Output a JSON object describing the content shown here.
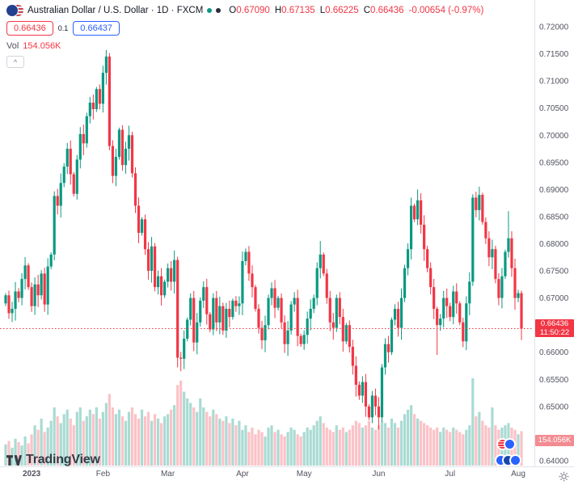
{
  "header": {
    "title": "Australian Dollar / U.S. Dollar · 1D · FXCM",
    "ohlc": {
      "o_label": "O",
      "o": "0.67090",
      "h_label": "H",
      "h": "0.67135",
      "l_label": "L",
      "l": "0.66225",
      "c_label": "C",
      "c": "0.66436",
      "change": "-0.00654 (-0.97%)"
    },
    "sell_price": "0.66436",
    "spread": "0.1",
    "buy_price": "0.66437",
    "vol_label": "Vol",
    "vol_value": "154.056K",
    "collapse_glyph": "^"
  },
  "badges": {
    "last_price": "0.66436",
    "countdown": "11:50:22",
    "volume": "154.056K"
  },
  "footer": {
    "logo_text": "TradingView"
  },
  "colors": {
    "up": "#089981",
    "down": "#f23645",
    "vol_up": "rgba(8,153,129,0.35)",
    "vol_down": "rgba(242,54,69,0.30)",
    "accent_blue": "#2962ff",
    "badge_price_bg": "#f23645",
    "badge_vol_bg": "#f28c92",
    "axis_text": "#50535e",
    "axis_line": "#e0e3eb"
  },
  "chart_data": {
    "type": "candlestick",
    "timeframe": "1D",
    "exchange": "FXCM",
    "price_axis": {
      "min": 0.64,
      "max": 0.72,
      "step": 0.005
    },
    "price_labels": [
      "0.72000",
      "0.71500",
      "0.71000",
      "0.70500",
      "0.70000",
      "0.69500",
      "0.69000",
      "0.68500",
      "0.68000",
      "0.67500",
      "0.67000",
      "0.66000",
      "0.65500",
      "0.65000",
      "0.64000"
    ],
    "month_ticks": [
      {
        "label": "2023",
        "i": 8,
        "bold": true
      },
      {
        "label": "Feb",
        "i": 30
      },
      {
        "label": "Mar",
        "i": 50
      },
      {
        "label": "Apr",
        "i": 73
      },
      {
        "label": "May",
        "i": 92
      },
      {
        "label": "Jun",
        "i": 115
      },
      {
        "label": "Jul",
        "i": 137
      },
      {
        "label": "Aug",
        "i": 158
      }
    ],
    "first_open": 0.669,
    "closes": [
      0.6705,
      0.6672,
      0.668,
      0.6712,
      0.67,
      0.6735,
      0.676,
      0.672,
      0.6685,
      0.6725,
      0.6705,
      0.6745,
      0.6688,
      0.6758,
      0.678,
      0.6888,
      0.687,
      0.6912,
      0.6942,
      0.6975,
      0.6928,
      0.6892,
      0.6955,
      0.7002,
      0.6985,
      0.7035,
      0.706,
      0.7048,
      0.7085,
      0.7058,
      0.7115,
      0.7145,
      0.698,
      0.6925,
      0.696,
      0.701,
      0.6945,
      0.6975,
      0.7,
      0.693,
      0.687,
      0.682,
      0.6845,
      0.679,
      0.675,
      0.6795,
      0.672,
      0.674,
      0.6705,
      0.673,
      0.6755,
      0.673,
      0.677,
      0.659,
      0.6588,
      0.6625,
      0.666,
      0.67,
      0.6618,
      0.6655,
      0.6695,
      0.672,
      0.667,
      0.6642,
      0.67,
      0.6655,
      0.6685,
      0.664,
      0.668,
      0.6665,
      0.6695,
      0.6685,
      0.669,
      0.6768,
      0.6785,
      0.6745,
      0.672,
      0.668,
      0.6645,
      0.6622,
      0.665,
      0.67,
      0.6718,
      0.6682,
      0.67,
      0.6655,
      0.6615,
      0.664,
      0.6688,
      0.67,
      0.663,
      0.6615,
      0.6632,
      0.6662,
      0.668,
      0.67,
      0.6755,
      0.678,
      0.6745,
      0.67,
      0.6655,
      0.6645,
      0.67,
      0.6665,
      0.662,
      0.665,
      0.661,
      0.6575,
      0.654,
      0.652,
      0.6545,
      0.65,
      0.648,
      0.652,
      0.65,
      0.648,
      0.6572,
      0.6615,
      0.66,
      0.666,
      0.668,
      0.6645,
      0.67,
      0.6755,
      0.679,
      0.687,
      0.6845,
      0.688,
      0.6835,
      0.679,
      0.6755,
      0.672,
      0.668,
      0.665,
      0.6662,
      0.67,
      0.6685,
      0.6665,
      0.6712,
      0.669,
      0.6655,
      0.662,
      0.669,
      0.673,
      0.6885,
      0.6862,
      0.689,
      0.684,
      0.681,
      0.6775,
      0.679,
      0.6735,
      0.67,
      0.674,
      0.6785,
      0.681,
      0.6755,
      0.67,
      0.6709,
      0.66436
    ],
    "volumes_k": [
      95,
      110,
      80,
      120,
      105,
      90,
      130,
      100,
      140,
      180,
      160,
      210,
      150,
      170,
      200,
      260,
      220,
      190,
      230,
      250,
      210,
      180,
      240,
      260,
      200,
      220,
      250,
      230,
      260,
      210,
      240,
      280,
      320,
      260,
      230,
      250,
      220,
      200,
      240,
      260,
      230,
      210,
      250,
      220,
      240,
      200,
      230,
      210,
      190,
      220,
      230,
      250,
      270,
      360,
      380,
      330,
      300,
      280,
      260,
      240,
      300,
      260,
      240,
      220,
      250,
      230,
      210,
      200,
      220,
      190,
      210,
      180,
      200,
      160,
      180,
      150,
      170,
      140,
      160,
      150,
      130,
      170,
      180,
      150,
      160,
      140,
      130,
      150,
      170,
      160,
      140,
      130,
      150,
      170,
      160,
      180,
      200,
      220,
      190,
      170,
      160,
      150,
      180,
      160,
      170,
      150,
      160,
      180,
      200,
      190,
      170,
      180,
      200,
      170,
      160,
      180,
      200,
      190,
      170,
      210,
      190,
      170,
      200,
      230,
      250,
      270,
      230,
      210,
      200,
      190,
      180,
      170,
      160,
      170,
      150,
      170,
      160,
      150,
      170,
      160,
      150,
      140,
      160,
      180,
      390,
      220,
      240,
      200,
      180,
      170,
      260,
      180,
      160,
      170,
      180,
      190,
      170,
      160,
      140,
      154.056
    ],
    "wick_overrides": {
      "31": {
        "h": 0.7157
      },
      "53": {
        "l": 0.6572
      },
      "54": {
        "l": 0.6565
      },
      "97": {
        "h": 0.6805
      },
      "115": {
        "l": 0.6458
      },
      "125": {
        "h": 0.6885
      },
      "127": {
        "h": 0.69
      },
      "133": {
        "l": 0.6595
      },
      "146": {
        "h": 0.6905
      },
      "155": {
        "h": 0.686
      },
      "159": {
        "o": 0.6709,
        "h": 0.67135,
        "l": 0.66225,
        "c": 0.66436
      }
    },
    "last_price": 0.66436,
    "last_change": -0.00654,
    "last_change_pct": -0.97,
    "last_volume_k": 154.056
  }
}
